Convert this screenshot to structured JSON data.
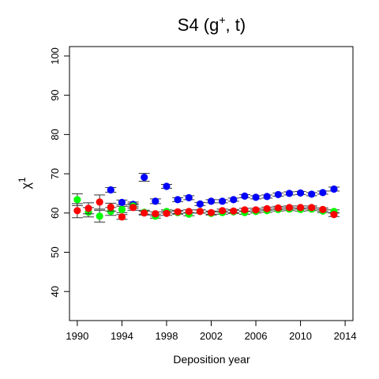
{
  "chart_data": {
    "type": "scatter",
    "title_main": "S4  (g",
    "title_sup": "+",
    "title_rest": ", t)",
    "xlabel": "Deposition year",
    "ylabel_main": "χ",
    "ylabel_sup": "1",
    "xlim": [
      1989.3,
      2014.7
    ],
    "ylim": [
      32.6,
      102.4
    ],
    "xticks": [
      1990,
      1994,
      1998,
      2002,
      2006,
      2010,
      2014
    ],
    "yticks": [
      40,
      50,
      60,
      70,
      80,
      90,
      100
    ],
    "grid": false,
    "series": [
      {
        "color": "#0000ff",
        "points": [
          {
            "x": 1993,
            "y": 65.9,
            "e": 0.6
          },
          {
            "x": 1994,
            "y": 62.7,
            "e": 0.6
          },
          {
            "x": 1995,
            "y": 62.2,
            "e": 0.6
          },
          {
            "x": 1996,
            "y": 69.1,
            "e": 1.0
          },
          {
            "x": 1997,
            "y": 63.0,
            "e": 0.6
          },
          {
            "x": 1998,
            "y": 66.8,
            "e": 0.5
          },
          {
            "x": 1999,
            "y": 63.4,
            "e": 0.5
          },
          {
            "x": 2000,
            "y": 63.9,
            "e": 0.5
          },
          {
            "x": 2001,
            "y": 62.3,
            "e": 0.4
          },
          {
            "x": 2002,
            "y": 63.0,
            "e": 0.4
          },
          {
            "x": 2003,
            "y": 63.0,
            "e": 0.4
          },
          {
            "x": 2004,
            "y": 63.4,
            "e": 0.4
          },
          {
            "x": 2005,
            "y": 64.3,
            "e": 0.4
          },
          {
            "x": 2006,
            "y": 64.0,
            "e": 0.4
          },
          {
            "x": 2007,
            "y": 64.2,
            "e": 0.4
          },
          {
            "x": 2008,
            "y": 64.7,
            "e": 0.4
          },
          {
            "x": 2009,
            "y": 65.0,
            "e": 0.4
          },
          {
            "x": 2010,
            "y": 65.1,
            "e": 0.4
          },
          {
            "x": 2011,
            "y": 64.8,
            "e": 0.4
          },
          {
            "x": 2012,
            "y": 65.2,
            "e": 0.4
          },
          {
            "x": 2013,
            "y": 66.1,
            "e": 0.5
          }
        ]
      },
      {
        "color": "#00ff00",
        "points": [
          {
            "x": 1990,
            "y": 63.4,
            "e": 1.5
          },
          {
            "x": 1991,
            "y": 60.2,
            "e": 1.2
          },
          {
            "x": 1992,
            "y": 59.2,
            "e": 1.5
          },
          {
            "x": 1993,
            "y": 60.4,
            "e": 1.0
          },
          {
            "x": 1994,
            "y": 60.9,
            "e": 0.8
          },
          {
            "x": 1995,
            "y": 61.8,
            "e": 0.6
          },
          {
            "x": 1996,
            "y": 60.2,
            "e": 0.5
          },
          {
            "x": 1997,
            "y": 59.2,
            "e": 0.5
          },
          {
            "x": 1998,
            "y": 60.4,
            "e": 0.4
          },
          {
            "x": 1999,
            "y": 60.1,
            "e": 0.4
          },
          {
            "x": 2000,
            "y": 59.7,
            "e": 0.4
          },
          {
            "x": 2001,
            "y": 60.4,
            "e": 0.4
          },
          {
            "x": 2002,
            "y": 59.9,
            "e": 0.4
          },
          {
            "x": 2003,
            "y": 60.1,
            "e": 0.4
          },
          {
            "x": 2004,
            "y": 60.3,
            "e": 0.4
          },
          {
            "x": 2005,
            "y": 60.1,
            "e": 0.4
          },
          {
            "x": 2006,
            "y": 60.4,
            "e": 0.4
          },
          {
            "x": 2007,
            "y": 60.6,
            "e": 0.4
          },
          {
            "x": 2008,
            "y": 60.9,
            "e": 0.4
          },
          {
            "x": 2009,
            "y": 61.0,
            "e": 0.4
          },
          {
            "x": 2010,
            "y": 60.9,
            "e": 0.4
          },
          {
            "x": 2011,
            "y": 61.0,
            "e": 0.4
          },
          {
            "x": 2012,
            "y": 60.5,
            "e": 0.4
          },
          {
            "x": 2013,
            "y": 60.4,
            "e": 0.4
          }
        ]
      },
      {
        "color": "#ff0000",
        "points": [
          {
            "x": 1990,
            "y": 60.6,
            "e": 1.8
          },
          {
            "x": 1991,
            "y": 61.2,
            "e": 1.4
          },
          {
            "x": 1992,
            "y": 62.8,
            "e": 1.8
          },
          {
            "x": 1993,
            "y": 61.5,
            "e": 1.0
          },
          {
            "x": 1994,
            "y": 59.0,
            "e": 0.6
          },
          {
            "x": 1995,
            "y": 61.4,
            "e": 0.7
          },
          {
            "x": 1996,
            "y": 60.0,
            "e": 0.5
          },
          {
            "x": 1997,
            "y": 59.8,
            "e": 0.5
          },
          {
            "x": 1998,
            "y": 59.9,
            "e": 0.5
          },
          {
            "x": 1999,
            "y": 60.3,
            "e": 0.4
          },
          {
            "x": 2000,
            "y": 60.4,
            "e": 0.4
          },
          {
            "x": 2001,
            "y": 60.4,
            "e": 0.4
          },
          {
            "x": 2002,
            "y": 60.1,
            "e": 0.4
          },
          {
            "x": 2003,
            "y": 60.6,
            "e": 0.4
          },
          {
            "x": 2004,
            "y": 60.5,
            "e": 0.4
          },
          {
            "x": 2005,
            "y": 60.8,
            "e": 0.4
          },
          {
            "x": 2006,
            "y": 60.8,
            "e": 0.4
          },
          {
            "x": 2007,
            "y": 61.1,
            "e": 0.4
          },
          {
            "x": 2008,
            "y": 61.3,
            "e": 0.4
          },
          {
            "x": 2009,
            "y": 61.4,
            "e": 0.4
          },
          {
            "x": 2010,
            "y": 61.4,
            "e": 0.4
          },
          {
            "x": 2011,
            "y": 61.4,
            "e": 0.4
          },
          {
            "x": 2012,
            "y": 60.9,
            "e": 0.4
          },
          {
            "x": 2013,
            "y": 59.6,
            "e": 0.5
          }
        ]
      }
    ]
  }
}
